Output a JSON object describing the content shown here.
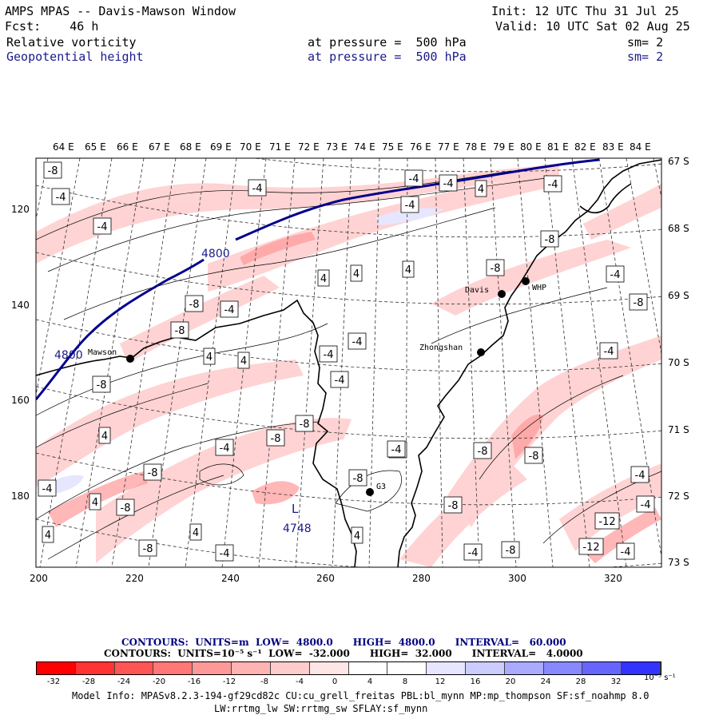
{
  "header": {
    "title": "AMPS MPAS -- Davis-Mawson Window",
    "init": "Init: 12 UTC Thu 31 Jul 25",
    "forecast": "Fcst:    46 h",
    "valid": "Valid: 10 UTC Sat 02 Aug 25",
    "field1_name": "Relative vorticity",
    "field1_level": "at pressure =  500 hPa",
    "field1_sm": "sm= 2",
    "field2_name": "Geopotential height",
    "field2_level": "at pressure =  500 hPa",
    "field2_sm": "sm= 2"
  },
  "map": {
    "lon_labels": [
      "64 E",
      "65 E",
      "66 E",
      "67 E",
      "68 E",
      "69 E",
      "70 E",
      "71 E",
      "72 E",
      "73 E",
      "74 E",
      "75 E",
      "76 E",
      "77 E",
      "78 E",
      "79 E",
      "80 E",
      "81 E",
      "82 E",
      "83 E",
      "84 E"
    ],
    "lat_labels": [
      "67 S",
      "68 S",
      "69 S",
      "70 S",
      "71 S",
      "72 S",
      "73 S"
    ],
    "y_ticks": [
      "120",
      "140",
      "160",
      "180"
    ],
    "x_ticks": [
      "200",
      "220",
      "240",
      "260",
      "280",
      "300",
      "320"
    ],
    "stations": [
      "Davis",
      "WHP",
      "Zhongshan",
      "Mawson",
      "G3"
    ],
    "height_labels": [
      "4800",
      "4800"
    ],
    "low_marker": "L",
    "low_value": "4748",
    "vort_labels": [
      "-8",
      "-4",
      "-4",
      "-4",
      "-8",
      "4",
      "4",
      "4",
      "-4",
      "4",
      "4",
      "-4",
      "-4",
      "-4",
      "-8",
      "-8",
      "-4",
      "4",
      "-8",
      "-4",
      "-8",
      "-4",
      "4",
      "-8",
      "-4",
      "-8",
      "-4",
      "-8",
      "-4",
      "-4",
      "4",
      "-4",
      "-8",
      "-8",
      "4",
      "-4",
      "4",
      "-8",
      "-8",
      "-8",
      "-4",
      "4",
      "-8",
      "-4",
      "-8",
      "-4",
      "-4",
      "-4",
      "-8",
      "-12",
      "-12",
      "-4"
    ]
  },
  "contour_info": {
    "line1": "CONTOURS:  UNITS=m  LOW=  4800.0      HIGH=  4800.0      INTERVAL=   60.000",
    "line2": "CONTOURS:  UNITS=10⁻⁵ s⁻¹  LOW=  -32.000      HIGH=  32.000      INTERVAL=   4.0000"
  },
  "colorbar": {
    "labels": [
      "-32",
      "-28",
      "-24",
      "-20",
      "-16",
      "-12",
      "-8",
      "-4",
      "0",
      "4",
      "8",
      "12",
      "16",
      "20",
      "24",
      "28",
      "32"
    ],
    "units": "10⁻⁵ s⁻¹",
    "colors": [
      "#ff0000",
      "#ff3333",
      "#ff5555",
      "#ff7777",
      "#ff9999",
      "#ffb3b3",
      "#ffcccc",
      "#ffe6e6",
      "#ffffff",
      "#ffffff",
      "#e6e6ff",
      "#ccccff",
      "#aaaaff",
      "#8888ff",
      "#6666ff",
      "#3333ff",
      "#0000ff"
    ]
  },
  "footer": {
    "line1": "Model Info: MPASv8.2.3-194-gf29cd82c CU:cu_grell_freitas PBL:bl_mynn MP:mp_thompson SF:sf_noahmp 8.0",
    "line2": "LW:rrtmg_lw SW:rrtmg_sw SFLAY:sf_mynn"
  }
}
